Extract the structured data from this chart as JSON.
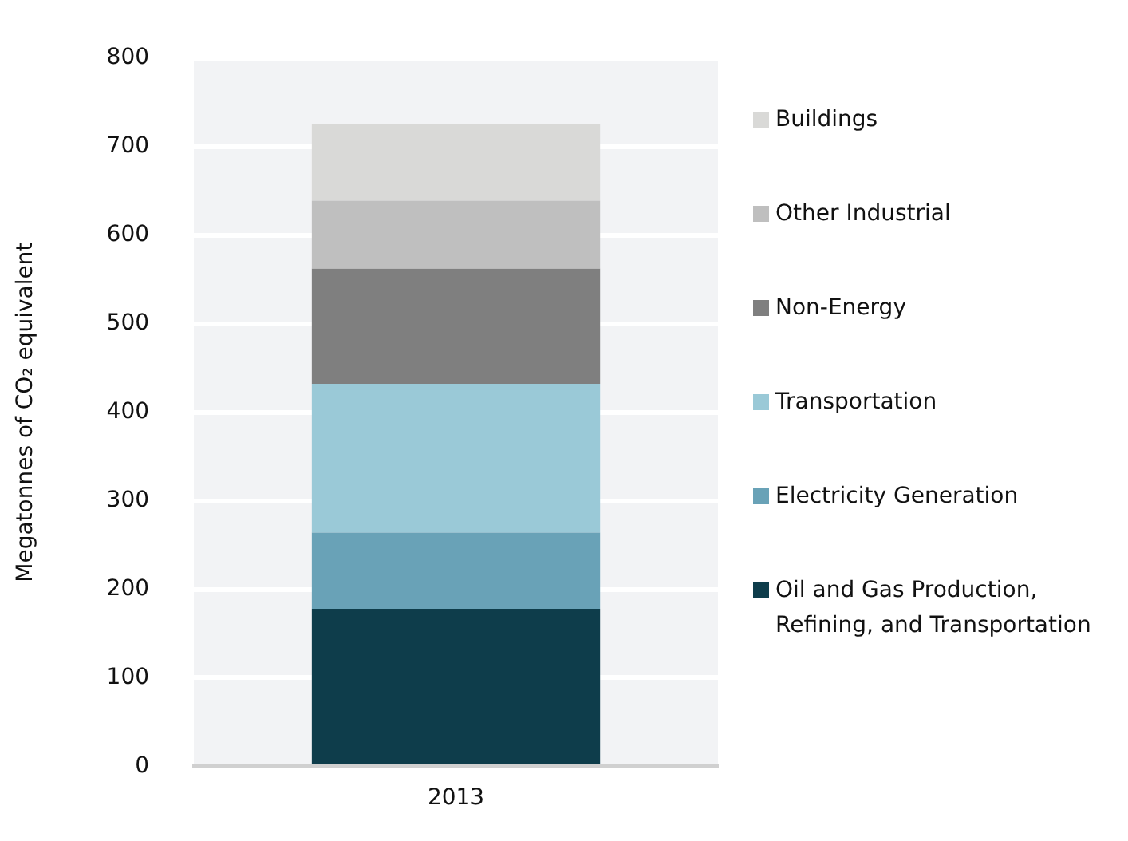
{
  "chart_data": {
    "type": "bar",
    "stacked": true,
    "ylabel": "Megatonnes of CO₂ equivalent",
    "categories": [
      "2013"
    ],
    "series": [
      {
        "name": "Oil and Gas Production, Refining, and Transportation",
        "color": "#0e3d4b",
        "values": [
          178
        ]
      },
      {
        "name": "Electricity Generation",
        "color": "#69a2b7",
        "values": [
          86
        ]
      },
      {
        "name": "Transportation",
        "color": "#9ac9d7",
        "values": [
          168
        ]
      },
      {
        "name": "Non-Energy",
        "color": "#7f7f7f",
        "values": [
          130
        ]
      },
      {
        "name": "Other Industrial",
        "color": "#bfbfbf",
        "values": [
          77
        ]
      },
      {
        "name": "Buildings",
        "color": "#d9d9d7",
        "values": [
          87
        ]
      }
    ],
    "ylim": [
      0,
      800
    ],
    "yticks": [
      0,
      100,
      200,
      300,
      400,
      500,
      600,
      700,
      800
    ],
    "grid": "y",
    "legend": "right"
  }
}
